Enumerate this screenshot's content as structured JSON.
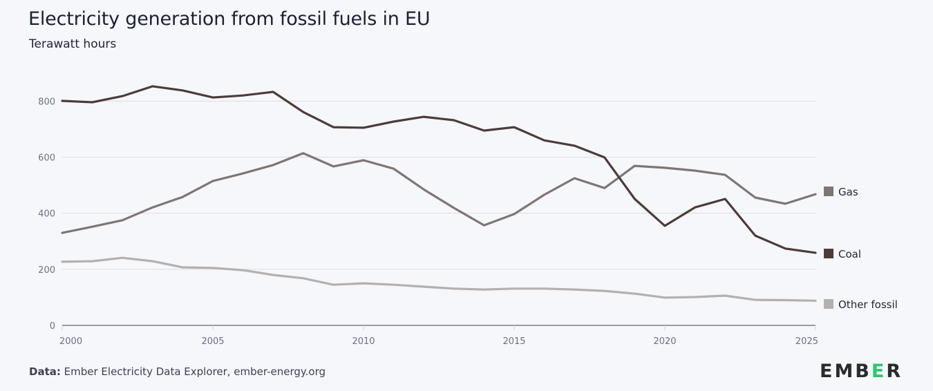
{
  "header": {
    "title": "Electricity generation from fossil fuels in EU",
    "subtitle": "Terawatt hours"
  },
  "footer": {
    "source_label": "Data:",
    "source_text": "Ember Electricity Data Explorer, ember-energy.org",
    "logo_parts": [
      "EMB",
      "E",
      "R"
    ],
    "logo_colors": {
      "text": "#2b2b2b",
      "accent": "#2fc46e"
    }
  },
  "chart_data": {
    "type": "line",
    "title": "Electricity generation from fossil fuels in EU",
    "subtitle": "Terawatt hours",
    "xlabel": "",
    "ylabel": "Terawatt hours",
    "x": [
      2000,
      2001,
      2002,
      2003,
      2004,
      2005,
      2006,
      2007,
      2008,
      2009,
      2010,
      2011,
      2012,
      2013,
      2014,
      2015,
      2016,
      2017,
      2018,
      2019,
      2020,
      2021,
      2022,
      2023,
      2024,
      2025
    ],
    "xlim": [
      2000,
      2025
    ],
    "ylim": [
      0,
      900
    ],
    "xticks": [
      2000,
      2005,
      2010,
      2015,
      2020,
      2025
    ],
    "yticks": [
      0,
      200,
      400,
      600,
      800
    ],
    "grid": true,
    "legend_position": "right (end-of-line labels)",
    "series": [
      {
        "name": "Gas",
        "color": "#7f7574",
        "values": [
          330,
          352,
          375,
          421,
          458,
          515,
          542,
          572,
          614,
          567,
          589,
          559,
          485,
          419,
          357,
          397,
          466,
          525,
          490,
          569,
          562,
          552,
          537,
          456,
          434,
          468
        ]
      },
      {
        "name": "Coal",
        "color": "#4e3b3a",
        "values": [
          801,
          796,
          818,
          853,
          838,
          813,
          820,
          833,
          761,
          707,
          705,
          727,
          744,
          732,
          695,
          707,
          660,
          641,
          599,
          451,
          355,
          421,
          451,
          320,
          274,
          259
        ]
      },
      {
        "name": "Other fossil",
        "color": "#b3b0af",
        "values": [
          227,
          229,
          241,
          229,
          207,
          205,
          197,
          180,
          168,
          145,
          150,
          145,
          138,
          131,
          128,
          131,
          131,
          128,
          123,
          113,
          99,
          101,
          106,
          91,
          90,
          88
        ]
      }
    ]
  }
}
